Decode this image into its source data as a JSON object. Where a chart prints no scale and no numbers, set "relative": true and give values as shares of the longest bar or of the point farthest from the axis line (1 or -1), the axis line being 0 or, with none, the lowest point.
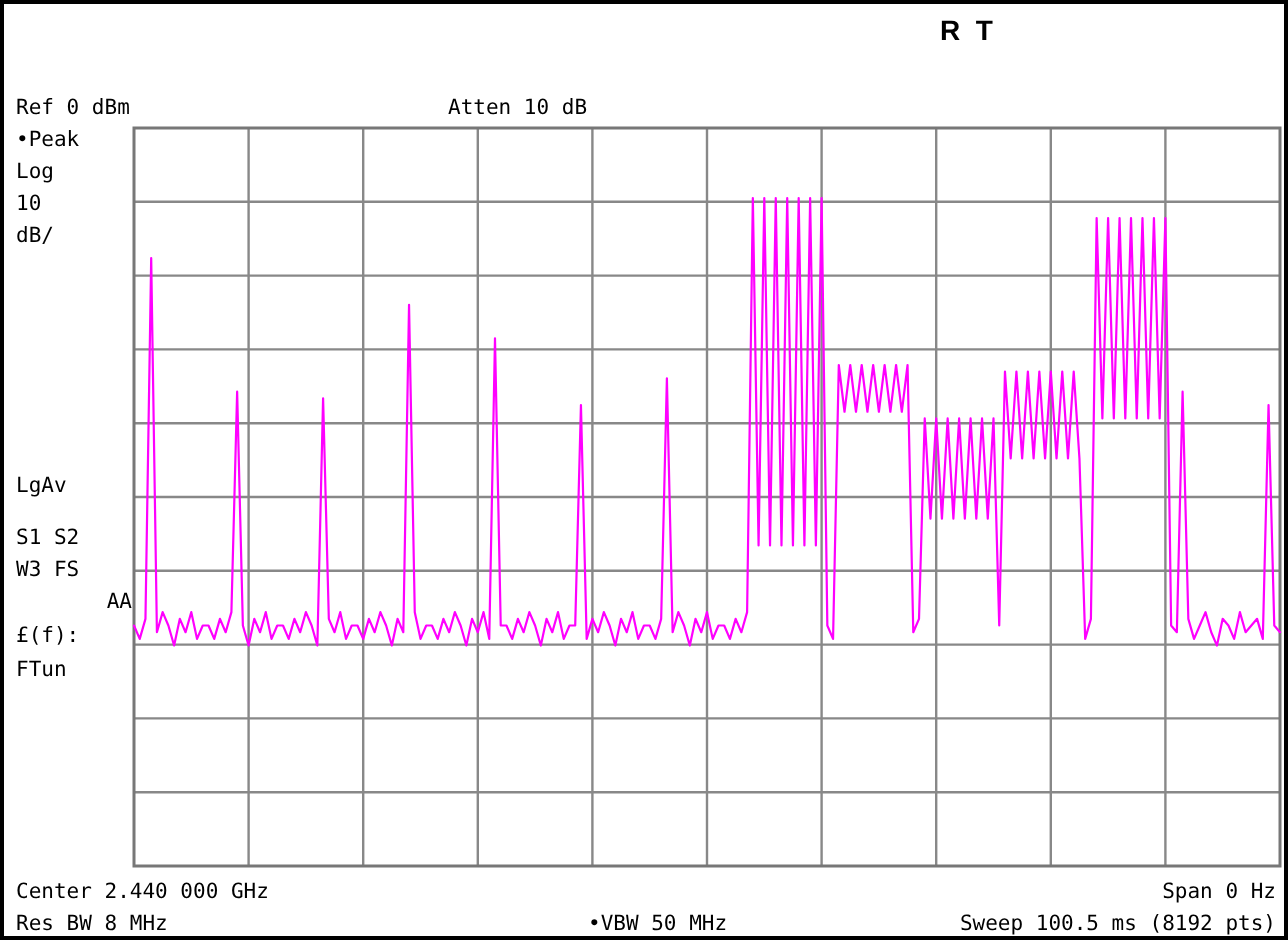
{
  "chart_data": {
    "type": "line",
    "relative": true,
    "grid": true,
    "categories": [
      null,
      null,
      null,
      null,
      null,
      null,
      null,
      null,
      null,
      null,
      null,
      null,
      null,
      null,
      null,
      null,
      null,
      null,
      null,
      null,
      null,
      null,
      null,
      null,
      null,
      null,
      null,
      null,
      null,
      null,
      null,
      null,
      null,
      null,
      null,
      null,
      null,
      null,
      null,
      null,
      null,
      null,
      null,
      null,
      null,
      null,
      null,
      null,
      null,
      null,
      null,
      null,
      null,
      null,
      null,
      null,
      null,
      null,
      null,
      null,
      null,
      null,
      null,
      null,
      null,
      null,
      null,
      null,
      null,
      null,
      null,
      null,
      null,
      null,
      null,
      null,
      null,
      null,
      null,
      null,
      null,
      null,
      null,
      null,
      null,
      null,
      null,
      null,
      null,
      null,
      null,
      null,
      null,
      null,
      null,
      null,
      null,
      null,
      null,
      null,
      null,
      null,
      null,
      null,
      null,
      null,
      null,
      null,
      null,
      null,
      null,
      null,
      null,
      null,
      null,
      null,
      null,
      null,
      null,
      null,
      null,
      null,
      null,
      null,
      null,
      null,
      null,
      null,
      null,
      null,
      null,
      null,
      null,
      null,
      null,
      null,
      null,
      null,
      null,
      null,
      null,
      null,
      null,
      null,
      null,
      null,
      null,
      null,
      null,
      null,
      null,
      null,
      null,
      null,
      null,
      null,
      null,
      null,
      null,
      null,
      null,
      null,
      null,
      null,
      null,
      null,
      null,
      null,
      null,
      null,
      null,
      null,
      null,
      null,
      null,
      null,
      null,
      null,
      null,
      null,
      null,
      null,
      null,
      null,
      null,
      null,
      null,
      null,
      null,
      null,
      null,
      null,
      null,
      null,
      null,
      null,
      null,
      null,
      null,
      null,
      null
    ],
    "series": [
      {
        "color": "#ff00ff",
        "values": [
          0.36,
          0.34,
          0.37,
          0.91,
          0.35,
          0.38,
          0.36,
          0.33,
          0.37,
          0.35,
          0.38,
          0.34,
          0.36,
          0.36,
          0.34,
          0.37,
          0.35,
          0.38,
          0.71,
          0.36,
          0.33,
          0.37,
          0.35,
          0.38,
          0.34,
          0.36,
          0.36,
          0.34,
          0.37,
          0.35,
          0.38,
          0.36,
          0.33,
          0.7,
          0.37,
          0.35,
          0.38,
          0.34,
          0.36,
          0.36,
          0.34,
          0.37,
          0.35,
          0.38,
          0.36,
          0.33,
          0.37,
          0.35,
          0.84,
          0.38,
          0.34,
          0.36,
          0.36,
          0.34,
          0.37,
          0.35,
          0.38,
          0.36,
          0.33,
          0.37,
          0.35,
          0.38,
          0.34,
          0.79,
          0.36,
          0.36,
          0.34,
          0.37,
          0.35,
          0.38,
          0.36,
          0.33,
          0.37,
          0.35,
          0.38,
          0.34,
          0.36,
          0.36,
          0.69,
          0.34,
          0.37,
          0.35,
          0.38,
          0.36,
          0.33,
          0.37,
          0.35,
          0.38,
          0.34,
          0.36,
          0.36,
          0.34,
          0.37,
          0.73,
          0.35,
          0.38,
          0.36,
          0.33,
          0.37,
          0.35,
          0.38,
          0.34,
          0.36,
          0.36,
          0.34,
          0.37,
          0.35,
          0.38,
          1.0,
          0.48,
          1.0,
          0.48,
          1.0,
          0.48,
          1.0,
          0.48,
          1.0,
          0.48,
          1.0,
          0.48,
          1.0,
          0.36,
          0.34,
          0.75,
          0.68,
          0.75,
          0.68,
          0.75,
          0.68,
          0.75,
          0.68,
          0.75,
          0.68,
          0.75,
          0.68,
          0.75,
          0.35,
          0.37,
          0.67,
          0.52,
          0.67,
          0.52,
          0.67,
          0.52,
          0.67,
          0.52,
          0.67,
          0.52,
          0.67,
          0.52,
          0.67,
          0.36,
          0.74,
          0.61,
          0.74,
          0.61,
          0.74,
          0.61,
          0.74,
          0.61,
          0.74,
          0.61,
          0.74,
          0.61,
          0.74,
          0.61,
          0.34,
          0.37,
          0.97,
          0.67,
          0.97,
          0.67,
          0.97,
          0.67,
          0.97,
          0.67,
          0.97,
          0.67,
          0.97,
          0.67,
          0.97,
          0.36,
          0.35,
          0.71,
          0.37,
          0.34,
          0.36,
          0.38,
          0.35,
          0.33,
          0.37,
          0.36,
          0.34,
          0.38,
          0.35,
          0.36,
          0.37,
          0.34,
          0.69,
          0.36,
          0.35
        ]
      }
    ],
    "annotations": [
      "R  T",
      "Ref 0 dBm",
      "Atten 10 dB",
      "•Peak",
      "Log",
      "10",
      "dB/",
      "LgAv",
      "S1 S2",
      "W3 FS",
      "AA",
      "£(f):",
      "FTun",
      "Center 2.440 000 GHz",
      "Span 0 Hz",
      "Res BW 8 MHz",
      "•VBW 50 MHz",
      "Sweep 100.5 ms (8192 pts)"
    ]
  }
}
